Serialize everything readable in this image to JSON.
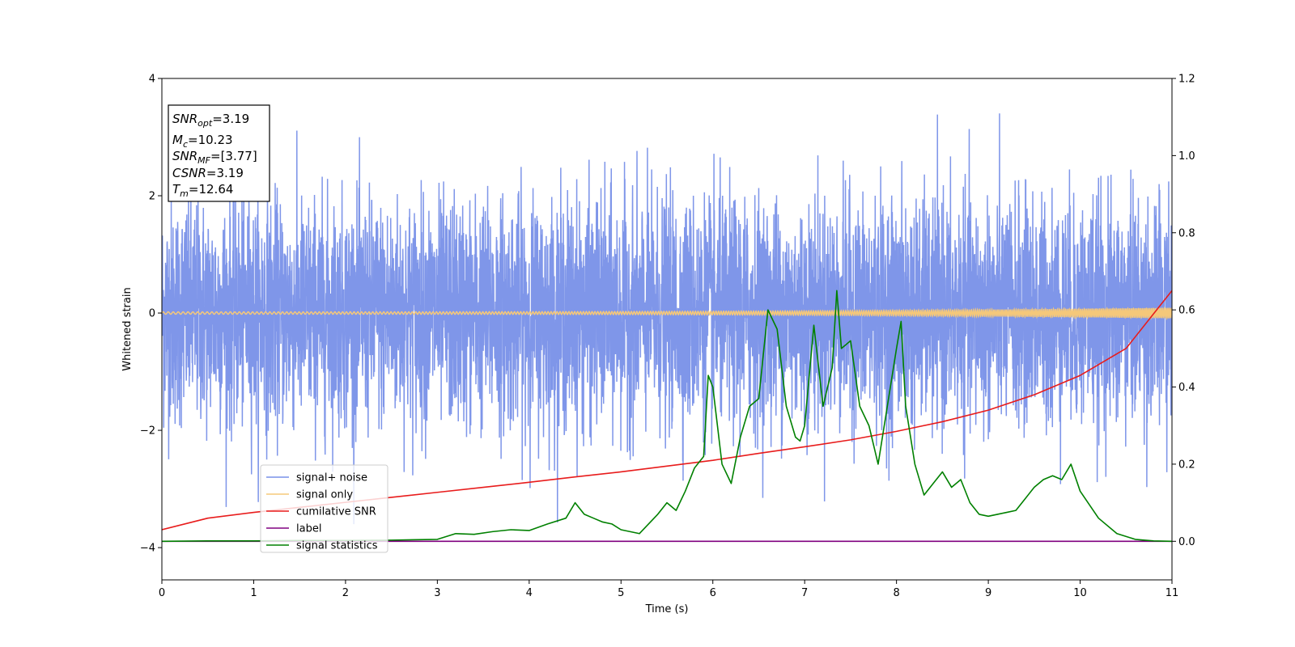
{
  "chart_data": {
    "type": "line",
    "xlabel": "Time (s)",
    "ylabel": "Whitened strain",
    "xlim": [
      0,
      11
    ],
    "ylim": [
      -4.55,
      4.0
    ],
    "ylim_right": [
      -0.1,
      1.2
    ],
    "x_ticks": [
      0,
      1,
      2,
      3,
      4,
      5,
      6,
      7,
      8,
      9,
      10,
      11
    ],
    "y_ticks": [
      -4,
      -2,
      0,
      2,
      4
    ],
    "y_ticks_right": [
      0.0,
      0.2,
      0.4,
      0.6,
      0.8,
      1.0,
      1.2
    ],
    "grid": false,
    "legend_position": "lower-left",
    "annotation": {
      "lines": [
        {
          "sym": "SNR",
          "sub": "opt",
          "text": "=3.19"
        },
        {
          "sym": "M",
          "sub": "c",
          "text": "=10.23"
        },
        {
          "sym": "SNR",
          "sub": "MF",
          "text": "=[3.77]"
        },
        {
          "sym": "CSNR",
          "sub": "",
          "text": "=3.19"
        },
        {
          "sym": "T",
          "sub": "m",
          "text": "=12.64"
        }
      ]
    },
    "series": [
      {
        "name": "signal+ noise",
        "color": "#7890e8",
        "axis": "left",
        "kind": "noise",
        "std": 0.95,
        "max_abs": 3.6
      },
      {
        "name": "signal only",
        "color": "#f5c87a",
        "axis": "left",
        "kind": "chirp",
        "amplitude_start": 0.02,
        "amplitude_end": 0.09
      },
      {
        "name": "cumilative SNR",
        "color": "#e81c1c",
        "axis": "right",
        "x": [
          0,
          0.5,
          1,
          1.5,
          2,
          2.5,
          3,
          3.5,
          4,
          4.5,
          5,
          5.5,
          6,
          6.5,
          7,
          7.5,
          8,
          8.5,
          9,
          9.5,
          10,
          10.5,
          11
        ],
        "y": [
          0.03,
          0.06,
          0.075,
          0.088,
          0.101,
          0.114,
          0.127,
          0.14,
          0.153,
          0.167,
          0.18,
          0.195,
          0.21,
          0.228,
          0.245,
          0.263,
          0.285,
          0.31,
          0.34,
          0.38,
          0.43,
          0.5,
          0.65
        ]
      },
      {
        "name": "label",
        "color": "#800080",
        "axis": "right",
        "x": [
          0,
          11
        ],
        "y": [
          0,
          0
        ]
      },
      {
        "name": "signal statistics",
        "color": "#008000",
        "axis": "right",
        "x": [
          0,
          0.5,
          1,
          1.5,
          2,
          2.5,
          3,
          3.2,
          3.4,
          3.6,
          3.8,
          4,
          4.2,
          4.4,
          4.5,
          4.6,
          4.7,
          4.8,
          4.9,
          5,
          5.2,
          5.4,
          5.5,
          5.6,
          5.7,
          5.8,
          5.9,
          5.95,
          6,
          6.1,
          6.2,
          6.3,
          6.4,
          6.5,
          6.6,
          6.7,
          6.8,
          6.9,
          6.95,
          7,
          7.1,
          7.2,
          7.3,
          7.35,
          7.4,
          7.5,
          7.6,
          7.7,
          7.8,
          7.9,
          8,
          8.05,
          8.1,
          8.2,
          8.3,
          8.4,
          8.5,
          8.6,
          8.7,
          8.8,
          8.9,
          9,
          9.1,
          9.2,
          9.3,
          9.4,
          9.5,
          9.6,
          9.7,
          9.8,
          9.9,
          10,
          10.2,
          10.4,
          10.6,
          10.8,
          11
        ],
        "y": [
          0,
          0.001,
          0.001,
          0.002,
          0.002,
          0.003,
          0.005,
          0.02,
          0.018,
          0.025,
          0.03,
          0.028,
          0.045,
          0.06,
          0.1,
          0.07,
          0.06,
          0.05,
          0.045,
          0.03,
          0.02,
          0.07,
          0.1,
          0.08,
          0.13,
          0.19,
          0.22,
          0.43,
          0.4,
          0.2,
          0.15,
          0.27,
          0.35,
          0.37,
          0.6,
          0.55,
          0.35,
          0.27,
          0.26,
          0.3,
          0.56,
          0.35,
          0.45,
          0.65,
          0.5,
          0.52,
          0.35,
          0.3,
          0.2,
          0.35,
          0.5,
          0.57,
          0.35,
          0.2,
          0.12,
          0.15,
          0.18,
          0.14,
          0.16,
          0.1,
          0.07,
          0.065,
          0.07,
          0.075,
          0.08,
          0.11,
          0.14,
          0.16,
          0.17,
          0.16,
          0.2,
          0.13,
          0.06,
          0.02,
          0.005,
          0.001,
          0
        ]
      }
    ]
  }
}
